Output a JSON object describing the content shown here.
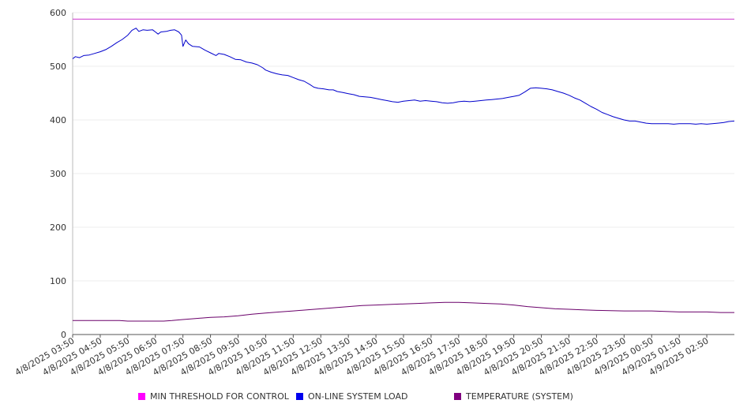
{
  "chart_data": {
    "type": "line",
    "x": [
      "4/8/2025 03:50",
      "4/8/2025 04:50",
      "4/8/2025 05:50",
      "4/8/2025 06:50",
      "4/8/2025 07:50",
      "4/8/2025 08:50",
      "4/8/2025 09:50",
      "4/8/2025 10:50",
      "4/8/2025 11:50",
      "4/8/2025 12:50",
      "4/8/2025 13:50",
      "4/8/2025 14:50",
      "4/8/2025 15:50",
      "4/8/2025 16:50",
      "4/8/2025 17:50",
      "4/8/2025 18:50",
      "4/8/2025 19:50",
      "4/8/2025 20:50",
      "4/8/2025 21:50",
      "4/8/2025 22:50",
      "4/8/2025 23:50",
      "4/9/2025 00:50",
      "4/9/2025 01:50",
      "4/9/2025 02:50"
    ],
    "x_end": 24,
    "ylim": [
      0,
      600
    ],
    "yticks": [
      0,
      100,
      200,
      300,
      400,
      500,
      600
    ],
    "grid": true,
    "legend_position": "bottom",
    "series": [
      {
        "name": "MIN THRESHOLD FOR CONTROL",
        "color": "#ff00ff",
        "line_color": "#cc33cc",
        "points": [
          [
            0,
            588
          ],
          [
            24,
            588
          ]
        ]
      },
      {
        "name": "ON-LINE SYSTEM LOAD",
        "color": "#0000ee",
        "line_color": "#0000cc",
        "points": [
          [
            0,
            514
          ],
          [
            0.1,
            518
          ],
          [
            0.25,
            516
          ],
          [
            0.4,
            520
          ],
          [
            0.6,
            521
          ],
          [
            0.8,
            524
          ],
          [
            1.0,
            527
          ],
          [
            1.2,
            531
          ],
          [
            1.4,
            537
          ],
          [
            1.6,
            544
          ],
          [
            1.8,
            550
          ],
          [
            2.0,
            558
          ],
          [
            2.15,
            567
          ],
          [
            2.3,
            571
          ],
          [
            2.4,
            565
          ],
          [
            2.55,
            568
          ],
          [
            2.7,
            567
          ],
          [
            2.9,
            568
          ],
          [
            3.0,
            564
          ],
          [
            3.1,
            560
          ],
          [
            3.2,
            564
          ],
          [
            3.4,
            565
          ],
          [
            3.55,
            567
          ],
          [
            3.7,
            568
          ],
          [
            3.85,
            564
          ],
          [
            3.95,
            558
          ],
          [
            4.0,
            537
          ],
          [
            4.1,
            549
          ],
          [
            4.2,
            542
          ],
          [
            4.35,
            537
          ],
          [
            4.6,
            536
          ],
          [
            4.8,
            530
          ],
          [
            5.0,
            525
          ],
          [
            5.2,
            520
          ],
          [
            5.3,
            524
          ],
          [
            5.5,
            522
          ],
          [
            5.7,
            518
          ],
          [
            5.9,
            513
          ],
          [
            6.1,
            512
          ],
          [
            6.3,
            508
          ],
          [
            6.5,
            506
          ],
          [
            6.7,
            503
          ],
          [
            6.9,
            497
          ],
          [
            7.0,
            493
          ],
          [
            7.2,
            489
          ],
          [
            7.4,
            486
          ],
          [
            7.6,
            484
          ],
          [
            7.8,
            483
          ],
          [
            8.0,
            479
          ],
          [
            8.2,
            475
          ],
          [
            8.4,
            472
          ],
          [
            8.6,
            466
          ],
          [
            8.75,
            461
          ],
          [
            8.9,
            459
          ],
          [
            9.1,
            458
          ],
          [
            9.3,
            456
          ],
          [
            9.45,
            456
          ],
          [
            9.6,
            453
          ],
          [
            9.8,
            451
          ],
          [
            10.0,
            449
          ],
          [
            10.2,
            447
          ],
          [
            10.4,
            444
          ],
          [
            10.6,
            443
          ],
          [
            10.8,
            442
          ],
          [
            11.0,
            440
          ],
          [
            11.2,
            438
          ],
          [
            11.4,
            436
          ],
          [
            11.6,
            434
          ],
          [
            11.8,
            433
          ],
          [
            12.0,
            435
          ],
          [
            12.2,
            436
          ],
          [
            12.4,
            437
          ],
          [
            12.6,
            435
          ],
          [
            12.8,
            436
          ],
          [
            13.0,
            435
          ],
          [
            13.2,
            434
          ],
          [
            13.4,
            432
          ],
          [
            13.6,
            431
          ],
          [
            13.8,
            432
          ],
          [
            14.0,
            434
          ],
          [
            14.2,
            435
          ],
          [
            14.4,
            434
          ],
          [
            14.6,
            435
          ],
          [
            14.8,
            436
          ],
          [
            15.0,
            437
          ],
          [
            15.2,
            438
          ],
          [
            15.4,
            439
          ],
          [
            15.6,
            440
          ],
          [
            15.8,
            442
          ],
          [
            16.0,
            444
          ],
          [
            16.2,
            446
          ],
          [
            16.4,
            452
          ],
          [
            16.6,
            459
          ],
          [
            16.8,
            460
          ],
          [
            17.0,
            459
          ],
          [
            17.2,
            458
          ],
          [
            17.4,
            456
          ],
          [
            17.6,
            453
          ],
          [
            17.8,
            450
          ],
          [
            18.0,
            446
          ],
          [
            18.2,
            441
          ],
          [
            18.4,
            437
          ],
          [
            18.6,
            431
          ],
          [
            18.8,
            425
          ],
          [
            19.0,
            420
          ],
          [
            19.2,
            414
          ],
          [
            19.4,
            410
          ],
          [
            19.6,
            406
          ],
          [
            19.8,
            403
          ],
          [
            20.0,
            400
          ],
          [
            20.2,
            398
          ],
          [
            20.4,
            398
          ],
          [
            20.6,
            396
          ],
          [
            20.8,
            394
          ],
          [
            21.0,
            393
          ],
          [
            21.2,
            393
          ],
          [
            21.4,
            393
          ],
          [
            21.6,
            393
          ],
          [
            21.8,
            392
          ],
          [
            22.0,
            393
          ],
          [
            22.2,
            393
          ],
          [
            22.4,
            393
          ],
          [
            22.6,
            392
          ],
          [
            22.8,
            393
          ],
          [
            23.0,
            392
          ],
          [
            23.2,
            393
          ],
          [
            23.4,
            394
          ],
          [
            23.6,
            395
          ],
          [
            23.8,
            397
          ],
          [
            24.0,
            398
          ]
        ]
      },
      {
        "name": "TEMPERATURE (SYSTEM)",
        "color": "#800080",
        "line_color": "#6a006a",
        "points": [
          [
            0,
            26
          ],
          [
            1.7,
            26
          ],
          [
            2.0,
            25
          ],
          [
            3.0,
            25
          ],
          [
            3.3,
            25
          ],
          [
            3.6,
            26
          ],
          [
            4.0,
            28
          ],
          [
            4.5,
            30
          ],
          [
            5.0,
            32
          ],
          [
            5.5,
            33
          ],
          [
            6.0,
            35
          ],
          [
            6.5,
            38
          ],
          [
            7.0,
            40
          ],
          [
            7.5,
            42
          ],
          [
            8.0,
            44
          ],
          [
            8.5,
            46
          ],
          [
            9.0,
            48
          ],
          [
            9.5,
            50
          ],
          [
            10.0,
            52
          ],
          [
            10.5,
            54
          ],
          [
            11.0,
            55
          ],
          [
            11.5,
            56
          ],
          [
            12.0,
            57
          ],
          [
            12.5,
            58
          ],
          [
            13.0,
            59
          ],
          [
            13.5,
            60
          ],
          [
            14.0,
            60
          ],
          [
            14.5,
            59
          ],
          [
            15.0,
            58
          ],
          [
            15.5,
            57
          ],
          [
            16.0,
            55
          ],
          [
            16.5,
            52
          ],
          [
            17.0,
            50
          ],
          [
            17.5,
            48
          ],
          [
            18.0,
            47
          ],
          [
            18.5,
            46
          ],
          [
            19.0,
            45
          ],
          [
            20.0,
            44
          ],
          [
            21.0,
            44
          ],
          [
            21.5,
            43
          ],
          [
            22.0,
            42
          ],
          [
            23.0,
            42
          ],
          [
            23.5,
            41
          ],
          [
            24.0,
            41
          ]
        ]
      }
    ]
  }
}
